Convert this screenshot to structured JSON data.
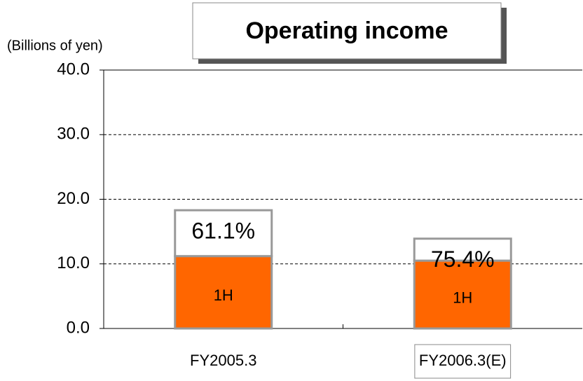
{
  "chart_data": {
    "type": "stacked-bar",
    "title": "Operating income",
    "y_label": "(Billions of yen)",
    "categories": [
      "FY2005.3",
      "FY2006.3(E)"
    ],
    "series": [
      {
        "name": "1H",
        "color": "#ff6600",
        "values": [
          11.2,
          10.5
        ]
      },
      {
        "color": "#ffffff",
        "values": [
          7.1,
          3.4
        ]
      }
    ],
    "annotations": [
      "61.1%",
      "75.4%"
    ],
    "ylim": [
      0,
      40
    ],
    "yticks": [
      {
        "value": 0,
        "label": "0.0"
      },
      {
        "value": 10,
        "label": "10.0"
      },
      {
        "value": 20,
        "label": "20.0"
      },
      {
        "value": 30,
        "label": "30.0"
      },
      {
        "value": 40,
        "label": "40.0"
      }
    ],
    "grid": true
  }
}
